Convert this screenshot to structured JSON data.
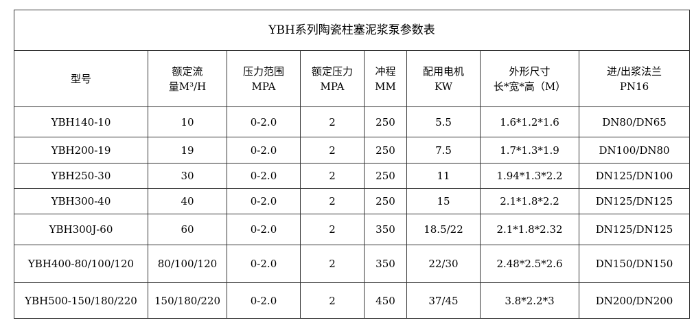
{
  "title": "YBH系列陶瓷柱塞泥浆泵参数表",
  "headers": [
    {
      "l1": "型号",
      "l2": ""
    },
    {
      "l1": "额定流",
      "l2": "量M³/H"
    },
    {
      "l1": "压力范围",
      "l2": "MPA"
    },
    {
      "l1": "额定压力",
      "l2": "MPA"
    },
    {
      "l1": "冲程",
      "l2": "MM"
    },
    {
      "l1": "配用电机",
      "l2": "KW"
    },
    {
      "l1": "外形尺寸",
      "l2": "长*宽*高（M）"
    },
    {
      "l1": "进/出浆法兰",
      "l2": "PN16"
    }
  ],
  "rows": [
    [
      "YBH140-10",
      "10",
      "0-2.0",
      "2",
      "250",
      "5.5",
      "1.6*1.2*1.6",
      "DN80/DN65"
    ],
    [
      "YBH200-19",
      "19",
      "0-2.0",
      "2",
      "250",
      "7.5",
      "1.7*1.3*1.9",
      "DN100/DN80"
    ],
    [
      "YBH250-30",
      "30",
      "0-2.0",
      "2",
      "250",
      "11",
      "1.94*1.3*2.2",
      "DN125/DN100"
    ],
    [
      "YBH300-40",
      "40",
      "0-2.0",
      "2",
      "250",
      "15",
      "2.1*1.8*2.2",
      "DN125/DN125"
    ],
    [
      "YBH300J-60",
      "60",
      "0-2.0",
      "2",
      "350",
      "18.5/22",
      "2.1*1.8*2.32",
      "DN125/DN125"
    ],
    [
      "YBH400-80/100/120",
      "80/100/120",
      "0-2.0",
      "2",
      "350",
      "22/30",
      "2.48*2.5*2.6",
      "DN150/DN150"
    ],
    [
      "YBH500-150/180/220",
      "150/180/220",
      "0-2.0",
      "2",
      "450",
      "37/45",
      "3.8*2.2*3",
      "DN200/DN200"
    ]
  ]
}
